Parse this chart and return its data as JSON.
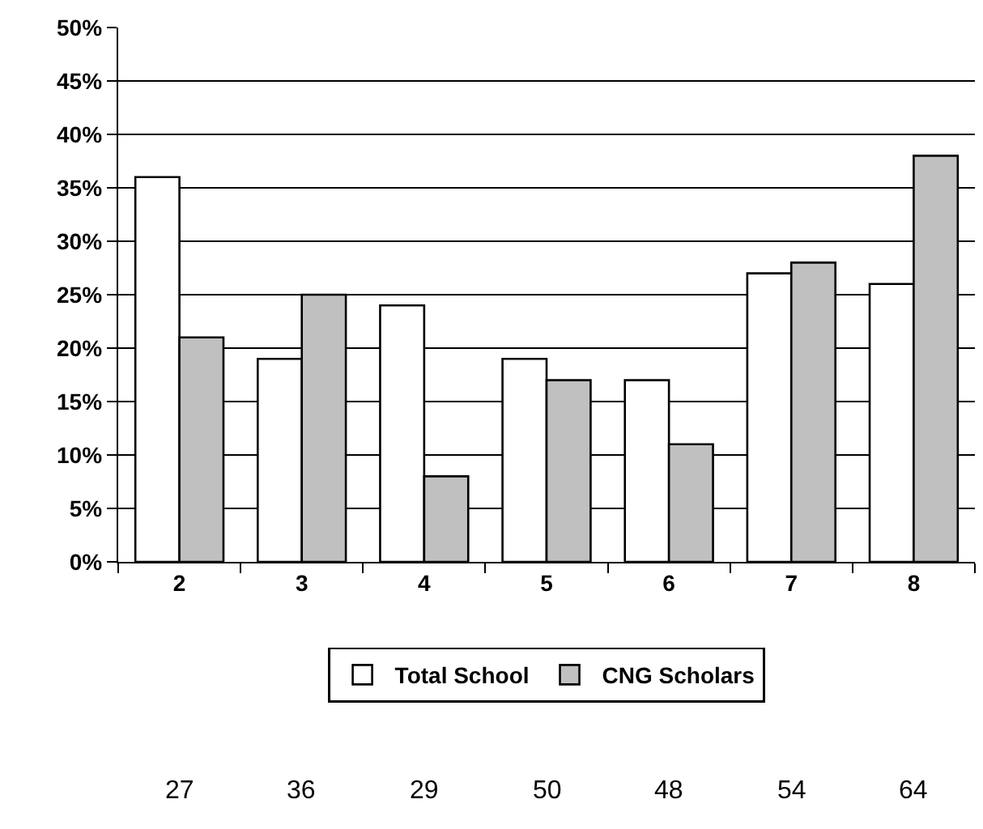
{
  "chart_data": {
    "type": "bar",
    "categories": [
      "2",
      "3",
      "4",
      "5",
      "6",
      "7",
      "8"
    ],
    "series": [
      {
        "name": "Total School",
        "color": "#ffffff",
        "values": [
          36,
          19,
          24,
          19,
          17,
          27,
          26
        ]
      },
      {
        "name": "CNG Scholars",
        "color": "#c0c0c0",
        "values": [
          21,
          25,
          8,
          17,
          11,
          28,
          38
        ]
      }
    ],
    "ylim": [
      0,
      50
    ],
    "yticks": [
      {
        "value": 0,
        "label": "0%"
      },
      {
        "value": 5,
        "label": "5%"
      },
      {
        "value": 10,
        "label": "10%"
      },
      {
        "value": 15,
        "label": "15%"
      },
      {
        "value": 20,
        "label": "20%"
      },
      {
        "value": 25,
        "label": "25%"
      },
      {
        "value": 30,
        "label": "30%"
      },
      {
        "value": 35,
        "label": "35%"
      },
      {
        "value": 40,
        "label": "40%"
      },
      {
        "value": 45,
        "label": "45%"
      },
      {
        "value": 50,
        "label": "50%"
      }
    ],
    "grid": "y",
    "legend": "bottom",
    "annotations": [
      "27",
      "36",
      "29",
      "50",
      "48",
      "54",
      "64"
    ]
  }
}
